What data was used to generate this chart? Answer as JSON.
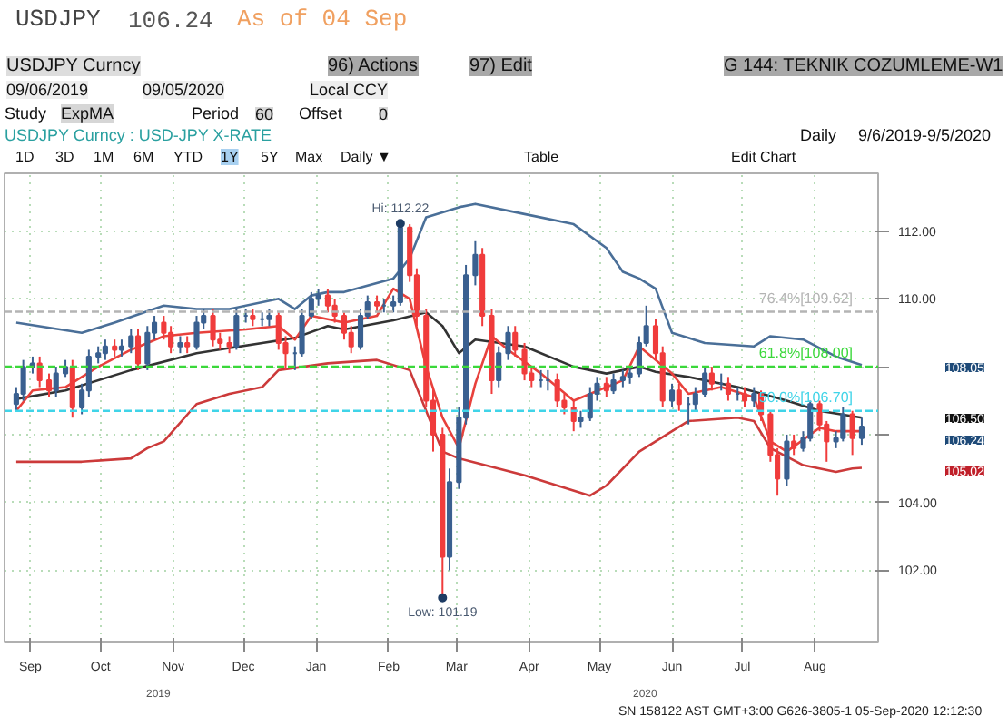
{
  "chart_data": {
    "type": "candlestick",
    "title": "USDJPY Curncy : USD-JPY X-RATE",
    "x": [
      "2019-09-09",
      "2019-09-12",
      "2019-09-16",
      "2019-09-19",
      "2019-09-23",
      "2019-09-26",
      "2019-09-30",
      "2019-10-03",
      "2019-10-07",
      "2019-10-10",
      "2019-10-14",
      "2019-10-17",
      "2019-10-21",
      "2019-10-24",
      "2019-10-28",
      "2019-10-31",
      "2019-11-04",
      "2019-11-07",
      "2019-11-11",
      "2019-11-14",
      "2019-11-18",
      "2019-11-21",
      "2019-11-25",
      "2019-11-28",
      "2019-12-02",
      "2019-12-05",
      "2019-12-09",
      "2019-12-12",
      "2019-12-16",
      "2019-12-19",
      "2019-12-23",
      "2019-12-26",
      "2019-12-30",
      "2020-01-02",
      "2020-01-06",
      "2020-01-09",
      "2020-01-13",
      "2020-01-16",
      "2020-01-20",
      "2020-01-23",
      "2020-01-27",
      "2020-01-30",
      "2020-02-03",
      "2020-02-06",
      "2020-02-10",
      "2020-02-13",
      "2020-02-17",
      "2020-02-20",
      "2020-02-24",
      "2020-02-27",
      "2020-03-02",
      "2020-03-05",
      "2020-03-09",
      "2020-03-12",
      "2020-03-16",
      "2020-03-19",
      "2020-03-23",
      "2020-03-26",
      "2020-03-30",
      "2020-04-02",
      "2020-04-06",
      "2020-04-09",
      "2020-04-13",
      "2020-04-16",
      "2020-04-20",
      "2020-04-23",
      "2020-04-27",
      "2020-04-30",
      "2020-05-04",
      "2020-05-07",
      "2020-05-11",
      "2020-05-14",
      "2020-05-18",
      "2020-05-21",
      "2020-05-25",
      "2020-05-28",
      "2020-06-01",
      "2020-06-04",
      "2020-06-08",
      "2020-06-11",
      "2020-06-15",
      "2020-06-18",
      "2020-06-22",
      "2020-06-25",
      "2020-06-29",
      "2020-07-02",
      "2020-07-06",
      "2020-07-09",
      "2020-07-13",
      "2020-07-16",
      "2020-07-20",
      "2020-07-23",
      "2020-07-27",
      "2020-07-30",
      "2020-08-03",
      "2020-08-06",
      "2020-08-10",
      "2020-08-13",
      "2020-08-17",
      "2020-08-20",
      "2020-08-24",
      "2020-08-27",
      "2020-08-31",
      "2020-09-04"
    ],
    "ohlc": [
      [
        106.9,
        107.4,
        106.7,
        107.2
      ],
      [
        107.2,
        108.2,
        107.0,
        108.0
      ],
      [
        108.0,
        108.3,
        107.8,
        108.1
      ],
      [
        108.1,
        108.3,
        107.4,
        107.6
      ],
      [
        107.6,
        107.8,
        107.1,
        107.3
      ],
      [
        107.3,
        108.0,
        107.1,
        107.8
      ],
      [
        107.8,
        108.2,
        107.7,
        108.0
      ],
      [
        108.0,
        108.2,
        106.5,
        106.8
      ],
      [
        106.8,
        107.5,
        106.6,
        107.3
      ],
      [
        107.3,
        108.5,
        107.1,
        108.3
      ],
      [
        108.3,
        108.6,
        108.1,
        108.4
      ],
      [
        108.4,
        108.8,
        108.2,
        108.6
      ],
      [
        108.6,
        108.8,
        108.3,
        108.5
      ],
      [
        108.5,
        108.8,
        108.3,
        108.6
      ],
      [
        108.6,
        109.1,
        108.4,
        108.9
      ],
      [
        108.9,
        109.1,
        107.9,
        108.1
      ],
      [
        108.1,
        109.2,
        107.9,
        109.0
      ],
      [
        109.0,
        109.5,
        108.8,
        109.3
      ],
      [
        109.3,
        109.5,
        108.8,
        109.0
      ],
      [
        109.0,
        109.2,
        108.4,
        108.6
      ],
      [
        108.6,
        108.9,
        108.4,
        108.7
      ],
      [
        108.7,
        108.9,
        108.4,
        108.6
      ],
      [
        108.6,
        109.5,
        108.5,
        109.3
      ],
      [
        109.3,
        109.7,
        109.1,
        109.5
      ],
      [
        109.5,
        109.7,
        108.6,
        108.8
      ],
      [
        108.8,
        109.0,
        108.5,
        108.7
      ],
      [
        108.7,
        108.9,
        108.4,
        108.6
      ],
      [
        108.6,
        109.7,
        108.5,
        109.5
      ],
      [
        109.5,
        109.7,
        109.3,
        109.5
      ],
      [
        109.5,
        109.7,
        109.2,
        109.4
      ],
      [
        109.4,
        109.6,
        109.2,
        109.4
      ],
      [
        109.4,
        109.7,
        109.2,
        109.5
      ],
      [
        109.5,
        109.6,
        108.5,
        108.7
      ],
      [
        108.7,
        108.9,
        107.9,
        108.4
      ],
      [
        108.4,
        108.6,
        107.9,
        108.4
      ],
      [
        108.4,
        109.7,
        108.3,
        109.5
      ],
      [
        109.5,
        110.2,
        109.4,
        110.0
      ],
      [
        110.0,
        110.3,
        109.8,
        110.1
      ],
      [
        110.1,
        110.3,
        109.6,
        109.8
      ],
      [
        109.8,
        110.0,
        109.3,
        109.5
      ],
      [
        109.5,
        109.6,
        108.8,
        109.0
      ],
      [
        109.0,
        109.2,
        108.4,
        108.6
      ],
      [
        108.6,
        109.7,
        108.5,
        109.5
      ],
      [
        109.5,
        110.1,
        109.4,
        109.9
      ],
      [
        109.9,
        110.1,
        109.6,
        109.8
      ],
      [
        109.8,
        110.0,
        109.6,
        109.8
      ],
      [
        109.8,
        110.1,
        109.6,
        109.9
      ],
      [
        109.9,
        112.22,
        109.8,
        112.1
      ],
      [
        112.1,
        112.2,
        110.5,
        110.7
      ],
      [
        110.7,
        110.9,
        109.2,
        109.5
      ],
      [
        109.5,
        109.7,
        106.8,
        107.0
      ],
      [
        107.0,
        107.4,
        105.5,
        106.0
      ],
      [
        106.0,
        106.2,
        101.19,
        102.4
      ],
      [
        102.4,
        105.0,
        102.0,
        104.6
      ],
      [
        104.6,
        106.8,
        104.4,
        106.5
      ],
      [
        106.5,
        111.0,
        106.3,
        110.7
      ],
      [
        110.7,
        111.7,
        110.4,
        111.3
      ],
      [
        111.3,
        111.5,
        109.2,
        109.5
      ],
      [
        109.5,
        109.7,
        107.2,
        107.6
      ],
      [
        107.6,
        108.6,
        107.4,
        108.4
      ],
      [
        108.4,
        109.2,
        108.2,
        109.0
      ],
      [
        109.0,
        109.2,
        108.3,
        108.5
      ],
      [
        108.5,
        108.7,
        107.6,
        107.8
      ],
      [
        107.8,
        108.0,
        107.4,
        107.6
      ],
      [
        107.6,
        107.9,
        107.4,
        107.6
      ],
      [
        107.6,
        107.9,
        107.3,
        107.6
      ],
      [
        107.6,
        107.8,
        106.8,
        107.0
      ],
      [
        107.0,
        107.2,
        106.6,
        106.8
      ],
      [
        106.8,
        107.0,
        106.1,
        106.4
      ],
      [
        106.4,
        106.7,
        106.2,
        106.5
      ],
      [
        106.5,
        107.4,
        106.4,
        107.2
      ],
      [
        107.2,
        107.7,
        107.0,
        107.5
      ],
      [
        107.5,
        107.7,
        107.1,
        107.3
      ],
      [
        107.3,
        107.8,
        107.2,
        107.6
      ],
      [
        107.6,
        107.9,
        107.4,
        107.7
      ],
      [
        107.7,
        108.0,
        107.5,
        107.8
      ],
      [
        107.8,
        108.9,
        107.7,
        108.7
      ],
      [
        108.7,
        109.8,
        108.6,
        109.2
      ],
      [
        109.2,
        109.4,
        108.2,
        108.4
      ],
      [
        108.4,
        108.6,
        106.8,
        107.0
      ],
      [
        107.0,
        107.5,
        106.8,
        107.3
      ],
      [
        107.3,
        107.5,
        106.7,
        106.9
      ],
      [
        106.9,
        107.1,
        106.3,
        106.9
      ],
      [
        106.9,
        107.4,
        106.7,
        107.2
      ],
      [
        107.2,
        108.0,
        107.1,
        107.8
      ],
      [
        107.8,
        108.0,
        107.3,
        107.5
      ],
      [
        107.5,
        107.8,
        107.3,
        107.5
      ],
      [
        107.5,
        107.7,
        107.0,
        107.2
      ],
      [
        107.2,
        107.4,
        107.0,
        107.2
      ],
      [
        107.2,
        107.4,
        106.8,
        107.0
      ],
      [
        107.0,
        107.4,
        106.8,
        107.2
      ],
      [
        107.2,
        107.3,
        106.4,
        106.6
      ],
      [
        106.6,
        106.7,
        105.2,
        105.4
      ],
      [
        105.4,
        105.6,
        104.2,
        104.7
      ],
      [
        104.7,
        106.0,
        104.5,
        105.8
      ],
      [
        105.8,
        106.0,
        105.4,
        105.6
      ],
      [
        105.6,
        106.1,
        105.5,
        105.9
      ],
      [
        105.9,
        107.0,
        105.8,
        106.9
      ],
      [
        106.9,
        107.0,
        106.1,
        106.3
      ],
      [
        106.3,
        106.4,
        105.2,
        105.8
      ],
      [
        105.8,
        106.1,
        105.6,
        105.9
      ],
      [
        105.9,
        106.8,
        105.8,
        106.6
      ],
      [
        106.6,
        106.7,
        105.4,
        105.9
      ],
      [
        105.9,
        106.5,
        105.7,
        106.24
      ]
    ],
    "colors": [
      "#3a6090",
      "#3a6090",
      "#3a6090",
      "#f03c3c",
      "#f03c3c",
      "#3a6090",
      "#3a6090",
      "#f03c3c",
      "#3a6090",
      "#3a6090",
      "#3a6090",
      "#3a6090",
      "#f03c3c",
      "#3a6090",
      "#3a6090",
      "#f03c3c",
      "#3a6090",
      "#3a6090",
      "#f03c3c",
      "#f03c3c",
      "#3a6090",
      "#f03c3c",
      "#3a6090",
      "#3a6090",
      "#f03c3c",
      "#f03c3c",
      "#f03c3c",
      "#3a6090",
      "#3a6090",
      "#f03c3c",
      "#3a6090",
      "#3a6090",
      "#f03c3c",
      "#f03c3c",
      "#3a6090",
      "#3a6090",
      "#3a6090",
      "#3a6090",
      "#f03c3c",
      "#f03c3c",
      "#f03c3c",
      "#f03c3c",
      "#3a6090",
      "#3a6090",
      "#f03c3c",
      "#3a6090",
      "#3a6090",
      "#3a6090",
      "#f03c3c",
      "#f03c3c",
      "#f03c3c",
      "#f03c3c",
      "#f03c3c",
      "#3a6090",
      "#3a6090",
      "#3a6090",
      "#3a6090",
      "#f03c3c",
      "#f03c3c",
      "#3a6090",
      "#3a6090",
      "#f03c3c",
      "#f03c3c",
      "#f03c3c",
      "#3a6090",
      "#3a6090",
      "#f03c3c",
      "#f03c3c",
      "#f03c3c",
      "#3a6090",
      "#3a6090",
      "#3a6090",
      "#f03c3c",
      "#3a6090",
      "#3a6090",
      "#3a6090",
      "#3a6090",
      "#3a6090",
      "#f03c3c",
      "#f03c3c",
      "#3a6090",
      "#f03c3c",
      "#3a6090",
      "#3a6090",
      "#3a6090",
      "#f03c3c",
      "#3a6090",
      "#f03c3c",
      "#3a6090",
      "#f03c3c",
      "#3a6090",
      "#f03c3c",
      "#f03c3c",
      "#f03c3c",
      "#3a6090",
      "#f03c3c",
      "#3a6090",
      "#3a6090",
      "#f03c3c",
      "#f03c3c",
      "#3a6090",
      "#3a6090",
      "#f03c3c",
      "#3a6090"
    ],
    "series": [
      {
        "type": "line",
        "color": "#4a6f98",
        "x": [
          "2019-09-09",
          "2019-10-07",
          "2019-10-21",
          "2019-11-11",
          "2019-11-25",
          "2019-12-09",
          "2019-12-30",
          "2020-01-06",
          "2020-01-13",
          "2020-01-20",
          "2020-01-27",
          "2020-02-17",
          "2020-02-24",
          "2020-03-02",
          "2020-03-16",
          "2020-03-23",
          "2020-04-13",
          "2020-05-04",
          "2020-05-18",
          "2020-05-25",
          "2020-06-01",
          "2020-06-08",
          "2020-06-15",
          "2020-06-29",
          "2020-07-20",
          "2020-07-27",
          "2020-08-10",
          "2020-08-24",
          "2020-09-04"
        ],
        "values": [
          109.3,
          109.0,
          109.3,
          109.8,
          109.7,
          109.7,
          110.0,
          109.7,
          110.1,
          110.2,
          110.2,
          110.6,
          111.2,
          112.4,
          112.7,
          112.8,
          112.5,
          112.2,
          111.5,
          110.8,
          110.6,
          110.3,
          109.0,
          108.7,
          108.6,
          108.9,
          108.8,
          108.3,
          108.05
        ]
      },
      {
        "type": "line",
        "color": "#cc3a3a",
        "x": [
          "2019-09-09",
          "2019-10-07",
          "2019-10-28",
          "2019-11-04",
          "2019-11-11",
          "2019-11-25",
          "2019-12-09",
          "2019-12-23",
          "2019-12-30",
          "2020-01-20",
          "2020-02-10",
          "2020-02-24",
          "2020-03-09",
          "2020-03-16",
          "2020-04-13",
          "2020-05-11",
          "2020-05-18",
          "2020-06-01",
          "2020-06-08",
          "2020-06-22",
          "2020-07-13",
          "2020-07-20",
          "2020-07-27",
          "2020-08-10",
          "2020-08-24",
          "2020-08-31",
          "2020-09-04"
        ],
        "values": [
          105.2,
          105.2,
          105.3,
          105.6,
          105.8,
          106.9,
          107.2,
          107.4,
          107.9,
          108.1,
          108.2,
          107.9,
          105.5,
          105.3,
          104.8,
          104.2,
          104.5,
          105.5,
          105.8,
          106.4,
          106.5,
          106.4,
          105.6,
          105.1,
          104.9,
          105.0,
          105.02
        ]
      },
      {
        "type": "line",
        "color": "#333333",
        "x": [
          "2019-09-09",
          "2019-09-30",
          "2019-10-28",
          "2019-11-25",
          "2019-12-23",
          "2020-01-06",
          "2020-01-20",
          "2020-01-27",
          "2020-02-17",
          "2020-03-02",
          "2020-03-09",
          "2020-03-16",
          "2020-03-23",
          "2020-04-13",
          "2020-05-04",
          "2020-05-18",
          "2020-06-01",
          "2020-06-08",
          "2020-06-22",
          "2020-07-13",
          "2020-08-03",
          "2020-08-17",
          "2020-09-04"
        ],
        "values": [
          107.05,
          107.3,
          107.9,
          108.4,
          108.7,
          108.85,
          109.2,
          109.1,
          109.37,
          109.6,
          109.2,
          108.4,
          108.8,
          108.6,
          108.0,
          107.8,
          108.0,
          107.85,
          107.7,
          107.4,
          107.0,
          106.7,
          106.5
        ]
      },
      {
        "type": "line",
        "color": "#e8413c",
        "x": [
          "2019-09-09",
          "2019-09-16",
          "2019-09-30",
          "2019-10-14",
          "2019-10-28",
          "2019-11-11",
          "2019-11-25",
          "2019-12-16",
          "2019-12-30",
          "2020-01-06",
          "2020-01-13",
          "2020-01-27",
          "2020-02-10",
          "2020-02-17",
          "2020-02-24",
          "2020-03-02",
          "2020-03-09",
          "2020-03-16",
          "2020-03-23",
          "2020-03-30",
          "2020-04-06",
          "2020-04-20",
          "2020-05-04",
          "2020-05-11",
          "2020-05-25",
          "2020-06-01",
          "2020-06-15",
          "2020-06-22",
          "2020-07-06",
          "2020-07-20",
          "2020-07-27",
          "2020-08-03",
          "2020-08-17",
          "2020-08-24",
          "2020-09-04"
        ],
        "values": [
          106.7,
          107.3,
          107.4,
          108.0,
          108.5,
          108.9,
          109.0,
          109.1,
          109.2,
          108.8,
          109.5,
          109.3,
          109.5,
          110.3,
          110.0,
          108.0,
          106.5,
          105.6,
          107.5,
          108.9,
          108.5,
          107.8,
          107.0,
          107.2,
          107.6,
          108.6,
          107.8,
          107.2,
          107.4,
          107.1,
          105.8,
          105.5,
          106.2,
          106.1,
          106.1
        ]
      }
    ],
    "xlim": [
      "2019-09-04",
      "2020-09-11"
    ],
    "xticks": [
      {
        "value": "2019-09-15",
        "label": "Sep"
      },
      {
        "value": "2019-10-15",
        "label": "Oct"
      },
      {
        "value": "2019-11-15",
        "label": "Nov"
      },
      {
        "value": "2019-12-15",
        "label": "Dec"
      },
      {
        "value": "2020-01-15",
        "label": "Jan"
      },
      {
        "value": "2020-02-15",
        "label": "Feb"
      },
      {
        "value": "2020-03-15",
        "label": "Mar"
      },
      {
        "value": "2020-04-15",
        "label": "Apr"
      },
      {
        "value": "2020-05-15",
        "label": "May"
      },
      {
        "value": "2020-06-15",
        "label": "Jun"
      },
      {
        "value": "2020-07-15",
        "label": "Jul"
      },
      {
        "value": "2020-08-15",
        "label": "Aug"
      }
    ],
    "ylim": [
      99.9,
      113.7
    ],
    "yticks": [
      {
        "value": 102,
        "label": "102.00"
      },
      {
        "value": 104,
        "label": "104.00"
      },
      {
        "value": 106,
        "label": null
      },
      {
        "value": 108,
        "label": null
      },
      {
        "value": 110,
        "label": "110.00"
      },
      {
        "value": 112,
        "label": "112.00"
      }
    ],
    "grid": true,
    "ref_lines": [
      {
        "axis": "y",
        "value": 109.62,
        "label": "76.4%[109.62]",
        "color": "#b4b4b4",
        "line_style": "dashed"
      },
      {
        "axis": "y",
        "value": 108.0,
        "label": "61.8%[108.00]",
        "color": "#3ad83a",
        "line_style": "dashed"
      },
      {
        "axis": "y",
        "value": 106.7,
        "label": "50.0%[106.70]",
        "color": "#40d4e8",
        "line_style": "dashed"
      }
    ],
    "annotations": [
      {
        "text": "Hi: 112.22",
        "x": "2020-02-20",
        "y": 112.22
      },
      {
        "text": "Low: 101.19",
        "x": "2020-03-09",
        "y": 101.19
      },
      "108.05",
      "106.50",
      "106.24",
      "105.02",
      "USDJPY",
      "106.24",
      "As of 04 Sep",
      "USDJPY Curncy",
      "96) Actions",
      "97) Edit",
      "G 144: TEKNIK COZUMLEME-W1",
      "09/06/2019",
      "09/05/2020",
      "Local CCY",
      "Study",
      "ExpMA",
      "Period",
      "60",
      "Offset",
      "0",
      "Daily",
      "9/6/2019-9/5/2020",
      "1D",
      "3D",
      "1M",
      "6M",
      "YTD",
      "1Y",
      "5Y",
      "Max",
      "Daily ▼",
      "Table",
      "Edit Chart",
      "2019",
      "2020",
      "SN 158122 AST GMT+3:00 G626-3805-1 05-Sep-2020 12:12:30"
    ]
  }
}
